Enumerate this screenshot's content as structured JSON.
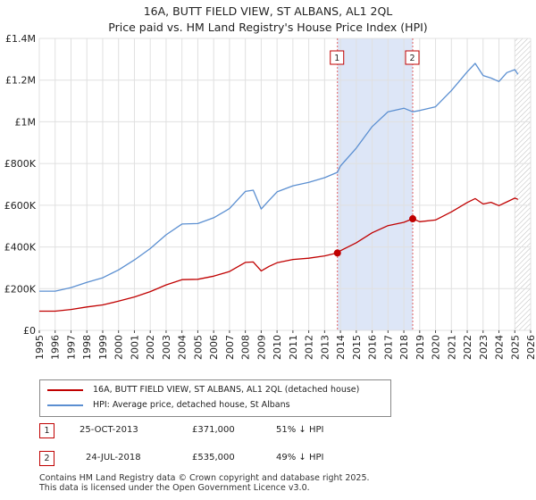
{
  "chart_data": {
    "type": "line",
    "title": "16A, BUTT FIELD VIEW, ST ALBANS, AL1 2QL",
    "subtitle": "Price paid vs. HM Land Registry's House Price Index (HPI)",
    "xlabel": "",
    "ylabel": "",
    "xlim": [
      1995,
      2026
    ],
    "ylim": [
      0,
      1400000
    ],
    "x_ticks": [
      "1995",
      "1996",
      "1997",
      "1998",
      "1999",
      "2000",
      "2001",
      "2002",
      "2003",
      "2004",
      "2005",
      "2006",
      "2007",
      "2008",
      "2009",
      "2010",
      "2011",
      "2012",
      "2013",
      "2014",
      "2015",
      "2016",
      "2017",
      "2018",
      "2019",
      "2020",
      "2021",
      "2022",
      "2023",
      "2024",
      "2025",
      "2026"
    ],
    "y_ticks": [
      {
        "value": 0,
        "label": "£0"
      },
      {
        "value": 200000,
        "label": "£200K"
      },
      {
        "value": 400000,
        "label": "£400K"
      },
      {
        "value": 600000,
        "label": "£600K"
      },
      {
        "value": 800000,
        "label": "£800K"
      },
      {
        "value": 1000000,
        "label": "£1M"
      },
      {
        "value": 1200000,
        "label": "£1.2M"
      },
      {
        "value": 1400000,
        "label": "£1.4M"
      }
    ],
    "grid": true,
    "shaded_region": {
      "x_start": 2013.81,
      "x_end": 2018.56,
      "color": "#dde6f7"
    },
    "hatched_region": {
      "x_start": 2025.0,
      "x_end": 2026.0
    },
    "series": [
      {
        "name": "16A, BUTT FIELD VIEW, ST ALBANS, AL1 2QL (detached house)",
        "color": "#c00000",
        "x": [
          1995,
          1996,
          1997,
          1998,
          1999,
          2000,
          2001,
          2002,
          2003,
          2004,
          2005,
          2006,
          2007,
          2008,
          2008.5,
          2009,
          2009.5,
          2010,
          2011,
          2012,
          2013,
          2013.81,
          2014,
          2015,
          2016,
          2017,
          2018,
          2018.56,
          2019,
          2020,
          2021,
          2022,
          2022.5,
          2023,
          2023.5,
          2024,
          2024.5,
          2025,
          2025.2
        ],
        "y": [
          92000,
          92000,
          100000,
          112000,
          122000,
          140000,
          160000,
          186000,
          218000,
          243000,
          245000,
          260000,
          282000,
          326000,
          328000,
          285000,
          307000,
          324000,
          340000,
          346000,
          357000,
          371000,
          382000,
          420000,
          468000,
          502000,
          518000,
          535000,
          521000,
          529000,
          568000,
          613000,
          632000,
          606000,
          614000,
          598000,
          616000,
          634000,
          628000
        ]
      },
      {
        "name": "HPI: Average price, detached house, St Albans",
        "color": "#5b8fd1",
        "x": [
          1995,
          1996,
          1997,
          1998,
          1999,
          2000,
          2001,
          2002,
          2003,
          2004,
          2005,
          2006,
          2007,
          2008,
          2008.5,
          2009,
          2009.5,
          2010,
          2011,
          2012,
          2013,
          2013.81,
          2014,
          2015,
          2016,
          2017,
          2018,
          2018.56,
          2019,
          2020,
          2021,
          2022,
          2022.5,
          2023,
          2023.5,
          2024,
          2024.5,
          2025,
          2025.2
        ],
        "y": [
          188000,
          188000,
          205000,
          230000,
          252000,
          290000,
          338000,
          392000,
          458000,
          510000,
          512000,
          540000,
          584000,
          666000,
          672000,
          582000,
          624000,
          664000,
          693000,
          710000,
          732000,
          758000,
          788000,
          874000,
          977000,
          1048000,
          1065000,
          1048000,
          1054000,
          1072000,
          1150000,
          1240000,
          1280000,
          1222000,
          1210000,
          1193000,
          1236000,
          1250000,
          1228000
        ]
      }
    ],
    "annotations": [
      {
        "id": "1",
        "x": 2013.81,
        "y": 371000
      },
      {
        "id": "2",
        "x": 2018.56,
        "y": 535000
      }
    ]
  },
  "legend": {
    "property_label": "16A, BUTT FIELD VIEW, ST ALBANS, AL1 2QL (detached house)",
    "hpi_label": "HPI: Average price, detached house, St Albans"
  },
  "transactions": [
    {
      "id": "1",
      "date": "25-OCT-2013",
      "price": "£371,000",
      "hpi_diff": "51% ↓ HPI"
    },
    {
      "id": "2",
      "date": "24-JUL-2018",
      "price": "£535,000",
      "hpi_diff": "49% ↓ HPI"
    }
  ],
  "footer": {
    "line1": "Contains HM Land Registry data © Crown copyright and database right 2025.",
    "line2": "This data is licensed under the Open Government Licence v3.0."
  },
  "colors": {
    "property": "#c00000",
    "hpi": "#5b8fd1",
    "grid": "#e0e0e0",
    "highlight": "#dde6f7"
  }
}
